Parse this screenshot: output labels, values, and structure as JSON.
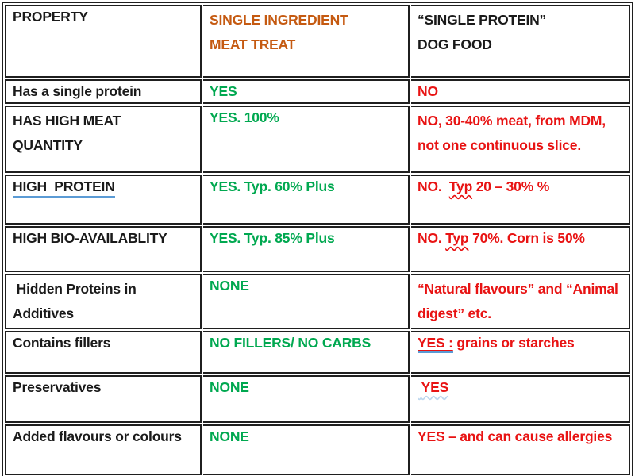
{
  "colors": {
    "orange": "#C55A11",
    "green": "#00A850",
    "red": "#E81313",
    "black": "#1a1a1a",
    "line": "#1f1f1f",
    "blue": "#5B9BD5",
    "blue_faint": "#BDD7EE"
  },
  "table": {
    "column_keys": [
      "property",
      "treat",
      "food"
    ],
    "rows": [
      {
        "header": true,
        "property": [
          {
            "t": "PROPERTY"
          }
        ],
        "treat": [
          {
            "t": "SINGLE INGREDIENT\nMEAT TREAT"
          }
        ],
        "food": [
          {
            "t": "“SINGLE PROTEIN”\nDOG FOOD"
          }
        ]
      },
      {
        "property": [
          {
            "t": "Has a single protein"
          }
        ],
        "treat": [
          {
            "t": "YES"
          }
        ],
        "food": [
          {
            "t": "NO"
          }
        ]
      },
      {
        "property": [
          {
            "t": "HAS HIGH MEAT\nQUANTITY"
          }
        ],
        "treat": [
          {
            "t": "YES. 100%"
          }
        ],
        "food": [
          {
            "t": "NO, 30-40% meat, from MDM,\nnot one continuous slice."
          }
        ]
      },
      {
        "property": [
          {
            "t": "HIGH  PROTEIN",
            "d": "u-blue"
          }
        ],
        "treat": [
          {
            "t": "YES. Typ. 60% Plus"
          }
        ],
        "food": [
          {
            "t": "NO.  "
          },
          {
            "t": "Typ",
            "d": "wavy-red"
          },
          {
            "t": " 20 – 30% %"
          }
        ]
      },
      {
        "property": [
          {
            "t": "HIGH BIO-AVAILABLITY"
          }
        ],
        "treat": [
          {
            "t": "YES. Typ. 85% Plus"
          }
        ],
        "food": [
          {
            "t": "NO. "
          },
          {
            "t": "Typ",
            "d": "wavy-red"
          },
          {
            "t": " 70%. Corn is 50%"
          }
        ]
      },
      {
        "property": [
          {
            "t": " Hidden Proteins in\nAdditives"
          }
        ],
        "treat": [
          {
            "t": "NONE"
          }
        ],
        "food": [
          {
            "t": "“Natural flavours” and “Animal\ndigest” etc."
          }
        ]
      },
      {
        "property": [
          {
            "t": "Contains fillers"
          }
        ],
        "treat": [
          {
            "t": "NO FILLERS/ NO CARBS"
          }
        ],
        "food": [
          {
            "t": "YES :",
            "d": "u-red-blue"
          },
          {
            "t": " grains or starches"
          }
        ]
      },
      {
        "property": [
          {
            "t": "Preservatives"
          }
        ],
        "treat": [
          {
            "t": "NONE"
          }
        ],
        "food": [
          {
            "t": " YES",
            "d": "wavy-blue"
          }
        ]
      },
      {
        "property": [
          {
            "t": "Added flavours or colours"
          }
        ],
        "treat": [
          {
            "t": "NONE"
          }
        ],
        "food": [
          {
            "t": "YES – and can cause allergies"
          }
        ]
      }
    ]
  }
}
